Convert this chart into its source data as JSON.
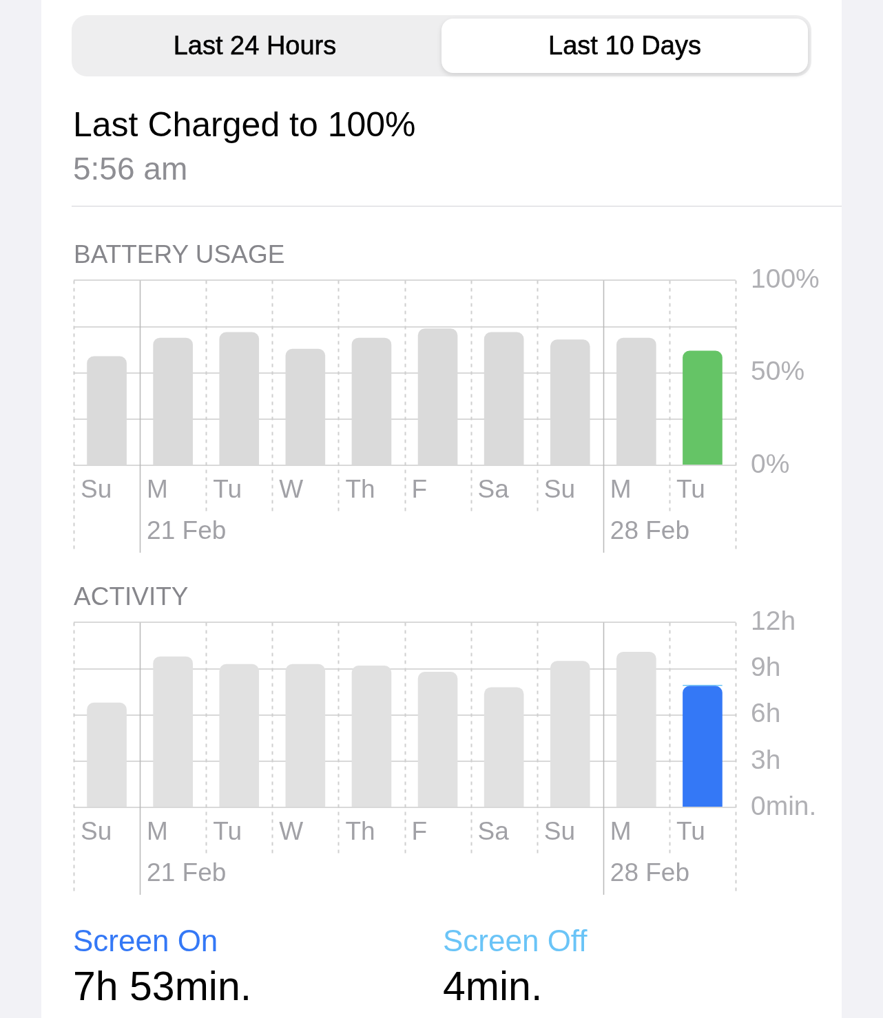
{
  "chart_data": [
    {
      "type": "other",
      "title": "Last Charged to 100%",
      "subtitle": "5:56 am",
      "annotations": [
        "Last 24 Hours",
        "Last 10 Days"
      ]
    },
    {
      "type": "bar",
      "title": "BATTERY USAGE",
      "categories": [
        "Su",
        "M\n21 Feb",
        "Tu",
        "W",
        "Th",
        "F",
        "Sa",
        "Su",
        "M\n28 Feb",
        "Tu"
      ],
      "values": [
        59,
        69,
        72,
        63,
        69,
        74,
        72,
        68,
        69,
        62
      ],
      "colors": [
        "#dadada",
        "#dadada",
        "#dadada",
        "#dadada",
        "#dadada",
        "#dadada",
        "#dadada",
        "#dadada",
        "#dadada",
        "#65c466"
      ],
      "ylim": [
        0,
        100
      ],
      "yticks": [
        {
          "value": 0,
          "label": "0%"
        },
        {
          "value": 25,
          "label": null
        },
        {
          "value": 50,
          "label": "50%"
        },
        {
          "value": 75,
          "label": null
        },
        {
          "value": 100,
          "label": "100%"
        }
      ],
      "grid": true
    },
    {
      "type": "bar",
      "title": "ACTIVITY",
      "categories": [
        "Su",
        "M\n21 Feb",
        "Tu",
        "W",
        "Th",
        "F",
        "Sa",
        "Su",
        "M\n28 Feb",
        "Tu"
      ],
      "series": [
        {
          "color": "#e1e1e1",
          "values": [
            6.8,
            9.8,
            9.3,
            9.3,
            9.2,
            8.8,
            7.8,
            9.5,
            10.1,
            null
          ]
        },
        {
          "name": "Screen On",
          "color": "#3478f6",
          "values": [
            null,
            null,
            null,
            null,
            null,
            null,
            null,
            null,
            null,
            7.88
          ]
        },
        {
          "name": "Screen Off",
          "color": "#6ac4f7",
          "values": [
            null,
            null,
            null,
            null,
            null,
            null,
            null,
            null,
            null,
            0.07
          ]
        }
      ],
      "stacked": true,
      "ylim": [
        0,
        12
      ],
      "yticks": [
        {
          "value": 0,
          "label": "0min."
        },
        {
          "value": 3,
          "label": "3h"
        },
        {
          "value": 6,
          "label": "6h"
        },
        {
          "value": 9,
          "label": "9h"
        },
        {
          "value": 12,
          "label": "12h"
        }
      ],
      "grid": true,
      "legend": "bottom",
      "annotations": [
        "7h 53min.",
        "4min."
      ]
    }
  ]
}
